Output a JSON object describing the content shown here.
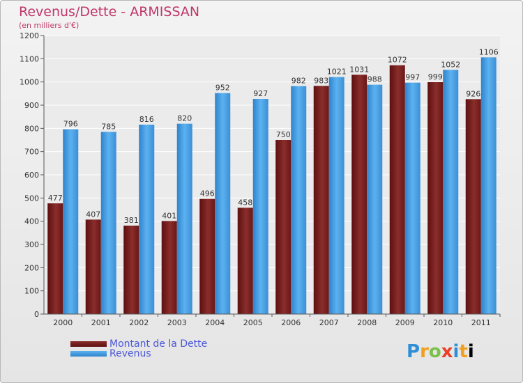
{
  "header": {
    "title": "Revenus/Dette - ARMISSAN",
    "subtitle": "(en milliers d'€)"
  },
  "legend": {
    "items": [
      {
        "label": "Montant de la Dette",
        "color": "#7a1c1c"
      },
      {
        "label": "Revenus",
        "color": "#4aa3e8"
      }
    ]
  },
  "logo": {
    "text": "Proxiti"
  },
  "chart_data": {
    "type": "bar",
    "categories": [
      "2000",
      "2001",
      "2002",
      "2003",
      "2004",
      "2005",
      "2006",
      "2007",
      "2008",
      "2009",
      "2010",
      "2011"
    ],
    "series": [
      {
        "name": "Montant de la Dette",
        "values": [
          477,
          407,
          381,
          401,
          496,
          458,
          750,
          983,
          1031,
          1072,
          999,
          926
        ],
        "color": "#7a1c1c"
      },
      {
        "name": "Revenus",
        "values": [
          796,
          785,
          816,
          820,
          952,
          927,
          982,
          1021,
          988,
          997,
          1052,
          1106
        ],
        "color": "#4aa3e8"
      }
    ],
    "yticks": [
      0,
      100,
      200,
      300,
      400,
      500,
      600,
      700,
      800,
      900,
      1000,
      1100,
      1200
    ],
    "ylim": [
      0,
      1200
    ],
    "grid": true,
    "legend_position": "bottom-left"
  }
}
